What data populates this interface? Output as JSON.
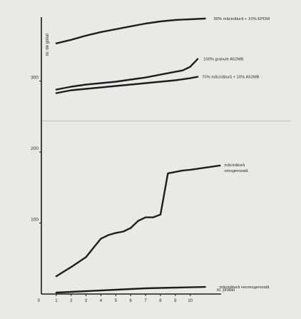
{
  "chart_data": {
    "type": "line",
    "title": "",
    "xlabel": "nr. probei",
    "ylabel": "nr. de goluri",
    "x_ticks": [
      "1",
      "2",
      "3",
      "4",
      "5",
      "6",
      "7",
      "8",
      "9",
      "10"
    ],
    "x_range": [
      0,
      11.5
    ],
    "y_ticks": [
      100,
      200,
      300
    ],
    "y_range": [
      0,
      390
    ],
    "series": [
      {
        "name": "90% măcinătură + 10% EPDM",
        "x": [
          1,
          2,
          3,
          4,
          5,
          6,
          7,
          8,
          9,
          10,
          11
        ],
        "y": [
          353,
          358,
          364,
          369,
          373,
          377,
          381,
          384,
          386,
          387,
          388
        ]
      },
      {
        "name": "100% granule A52MB",
        "x": [
          1,
          2,
          3,
          4,
          5,
          6,
          7,
          8,
          9,
          9.5,
          10,
          10.5
        ],
        "y": [
          288,
          292,
          295,
          297,
          299,
          302,
          305,
          309,
          313,
          315,
          320,
          331
        ]
      },
      {
        "name": "70% măcinătură + 10% A52MB",
        "x": [
          1,
          2,
          3,
          4,
          5,
          6,
          7,
          8,
          9,
          10,
          10.5
        ],
        "y": [
          283,
          287,
          289,
          291,
          293,
          295,
          297,
          299,
          301,
          304,
          306
        ]
      },
      {
        "name": "măcinătură omogenizată",
        "x": [
          1,
          2,
          3,
          3.5,
          4,
          4.5,
          5,
          5.5,
          6,
          6.5,
          7,
          7.5,
          8,
          8.5,
          9,
          9.5,
          10,
          11,
          12
        ],
        "y": [
          25,
          38,
          52,
          65,
          78,
          83,
          86,
          88,
          93,
          103,
          108,
          108,
          112,
          170,
          172,
          174,
          175,
          178,
          181
        ]
      },
      {
        "name": "măcinătură neomogenizată",
        "x": [
          1,
          3,
          5,
          7,
          9,
          11
        ],
        "y": [
          2,
          4,
          6,
          8,
          9,
          10
        ]
      }
    ],
    "labels_text": [
      "90% măcinătură + 10% EPDM",
      "100% granule A52MB",
      "70% măcinătură + 10% A52MB",
      "măcinătură",
      "omogenizată",
      "măcinătură neomogenizată"
    ]
  }
}
